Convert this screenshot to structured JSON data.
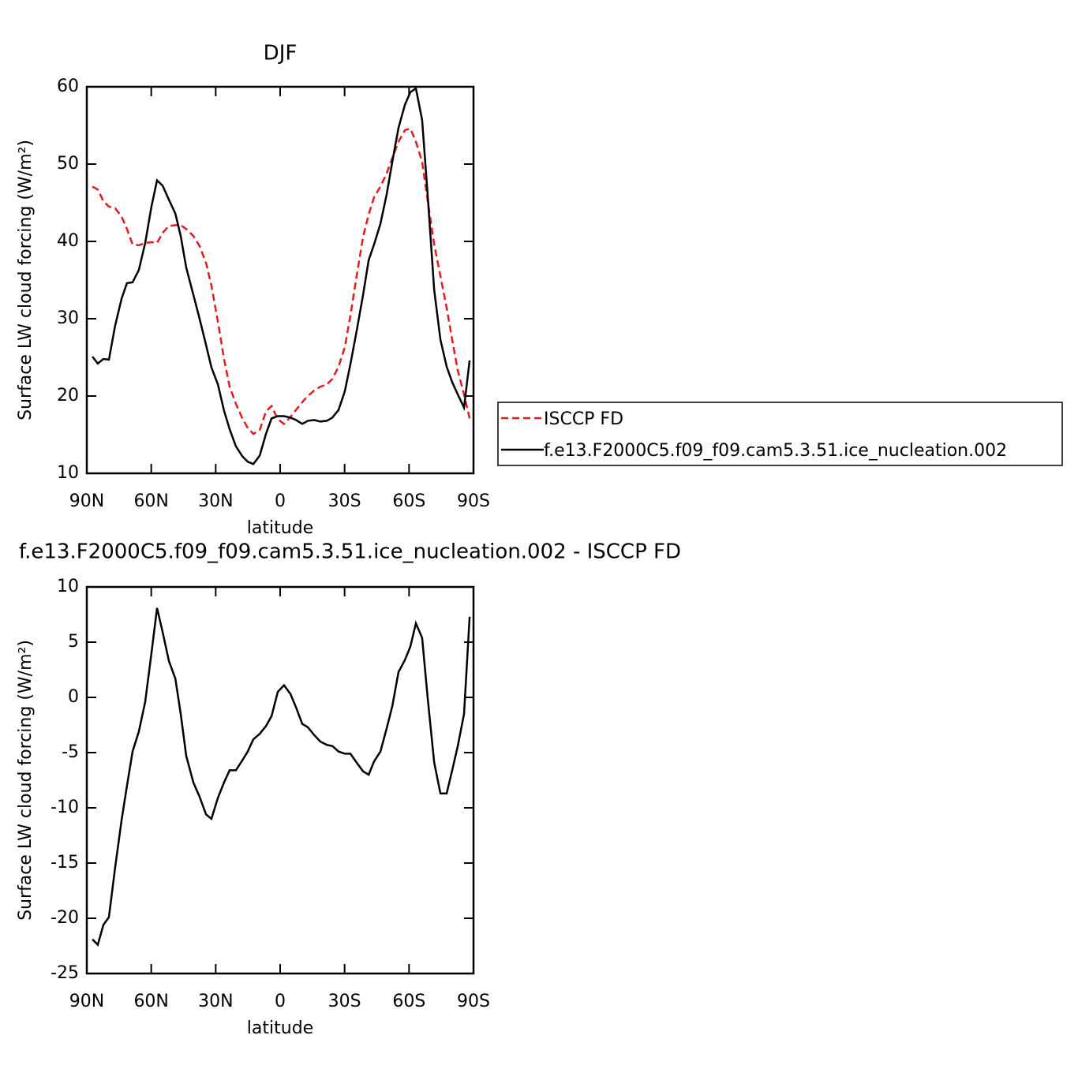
{
  "chart_data": [
    {
      "type": "line",
      "title": "DJF",
      "y_label": "Surface LW cloud forcing (W/m²)",
      "x_label": "latitude",
      "xlim": [
        90,
        -90
      ],
      "ylim": [
        10,
        60
      ],
      "xticks": [
        {
          "value": 90,
          "label": "90N"
        },
        {
          "value": 60,
          "label": "60N"
        },
        {
          "value": 30,
          "label": "30N"
        },
        0,
        {
          "value": -30,
          "label": "30S"
        },
        {
          "value": -60,
          "label": "60S"
        },
        {
          "value": -90,
          "label": "90S"
        }
      ],
      "yticks": [
        10,
        20,
        30,
        40,
        50,
        60
      ],
      "legend": "right",
      "x": [
        87.4,
        84.9,
        82.3,
        79.7,
        76.8,
        73.8,
        71.3,
        68.7,
        65.8,
        62.8,
        59.9,
        57.3,
        54.7,
        51.8,
        48.8,
        46.3,
        43.7,
        40.4,
        37.5,
        34.5,
        32.0,
        29.0,
        26.1,
        23.5,
        20.6,
        17.6,
        15.1,
        12.5,
        9.5,
        6.6,
        4.0,
        1.1,
        -1.8,
        -4.8,
        -7.4,
        -10.3,
        -12.9,
        -15.8,
        -18.7,
        -21.7,
        -24.3,
        -27.2,
        -30.1,
        -32.7,
        -35.6,
        -38.6,
        -41.2,
        -43.7,
        -46.7,
        -49.6,
        -52.2,
        -55.1,
        -58.1,
        -60.6,
        -63.2,
        -66.1,
        -68.7,
        -71.7,
        -74.6,
        -77.5,
        -80.1,
        -82.7,
        -85.6,
        -88.2
      ],
      "series": [
        {
          "name": "ISCCP FD",
          "color": "#e41a1c",
          "dash": true,
          "values": [
            47.1,
            46.7,
            45.2,
            44.5,
            44.3,
            43.2,
            41.6,
            39.6,
            39.5,
            39.8,
            39.9,
            39.8,
            41.1,
            42.0,
            42.1,
            42.1,
            41.6,
            40.7,
            39.4,
            37.2,
            34.3,
            29.6,
            24.8,
            21.2,
            19.0,
            17.1,
            15.9,
            15.1,
            15.6,
            18.0,
            18.7,
            17.0,
            16.4,
            17.3,
            18.2,
            19.2,
            20.0,
            20.7,
            21.2,
            21.5,
            22.2,
            23.8,
            26.3,
            30.4,
            35.5,
            40.6,
            43.5,
            45.7,
            47.1,
            48.8,
            50.8,
            52.9,
            54.4,
            54.6,
            52.9,
            50.3,
            45.2,
            39.6,
            35.5,
            31.4,
            27.3,
            23.3,
            20.2,
            17.1
          ]
        },
        {
          "name": "f.e13.F2000C5.f09_f09.cam5.3.51.ice_nucleation.002",
          "color": "#000000",
          "dash": false,
          "values": [
            25.1,
            24.2,
            24.8,
            24.7,
            29.1,
            32.6,
            34.6,
            34.7,
            36.3,
            39.8,
            44.5,
            47.9,
            47.2,
            45.4,
            43.6,
            40.7,
            36.6,
            33.1,
            30.0,
            26.6,
            23.7,
            21.5,
            18.1,
            15.7,
            13.5,
            12.2,
            11.5,
            11.2,
            12.3,
            15.1,
            17.1,
            17.4,
            17.4,
            17.2,
            16.9,
            16.4,
            16.8,
            16.9,
            16.7,
            16.8,
            17.2,
            18.2,
            20.6,
            24.1,
            28.4,
            33.1,
            37.6,
            39.6,
            42.3,
            46.1,
            50.3,
            54.7,
            57.7,
            59.3,
            59.8,
            55.7,
            45.9,
            33.7,
            27.3,
            23.8,
            21.8,
            20.2,
            18.5,
            24.6
          ]
        }
      ]
    },
    {
      "type": "line",
      "title": "f.e13.F2000C5.f09_f09.cam5.3.51.ice_nucleation.002 - ISCCP FD",
      "y_label": "Surface LW cloud forcing (W/m²)",
      "x_label": "latitude",
      "xlim": [
        90,
        -90
      ],
      "ylim": [
        -25,
        10
      ],
      "xticks": [
        {
          "value": 90,
          "label": "90N"
        },
        {
          "value": 60,
          "label": "60N"
        },
        {
          "value": 30,
          "label": "30N"
        },
        0,
        {
          "value": -30,
          "label": "30S"
        },
        {
          "value": -60,
          "label": "60S"
        },
        {
          "value": -90,
          "label": "90S"
        }
      ],
      "yticks": [
        -25,
        -20,
        -15,
        -10,
        -5,
        0,
        5,
        10
      ],
      "x": [
        87.4,
        84.9,
        82.3,
        79.7,
        76.8,
        73.8,
        71.3,
        68.7,
        65.8,
        62.8,
        59.9,
        57.3,
        54.7,
        51.8,
        48.8,
        46.3,
        43.7,
        40.4,
        37.5,
        34.5,
        32.0,
        29.0,
        26.1,
        23.5,
        20.6,
        17.6,
        15.1,
        12.5,
        9.5,
        6.6,
        4.0,
        1.1,
        -1.8,
        -4.8,
        -7.4,
        -10.3,
        -12.9,
        -15.8,
        -18.7,
        -21.7,
        -24.3,
        -27.2,
        -30.1,
        -32.7,
        -35.6,
        -38.6,
        -41.2,
        -43.7,
        -46.7,
        -49.6,
        -52.2,
        -55.1,
        -58.1,
        -60.6,
        -63.2,
        -66.1,
        -68.7,
        -71.7,
        -74.6,
        -77.5,
        -80.1,
        -82.7,
        -85.6,
        -88.2
      ],
      "series": [
        {
          "color": "#000000",
          "dash": false,
          "values": [
            -21.9,
            -22.4,
            -20.6,
            -19.9,
            -15.4,
            -11.1,
            -8.0,
            -4.9,
            -3.1,
            -0.4,
            4.0,
            8.1,
            5.9,
            3.3,
            1.7,
            -1.5,
            -5.3,
            -7.7,
            -9.0,
            -10.6,
            -11.0,
            -9.1,
            -7.7,
            -6.6,
            -6.6,
            -5.7,
            -4.9,
            -3.8,
            -3.3,
            -2.6,
            -1.7,
            0.5,
            1.1,
            0.3,
            -0.9,
            -2.4,
            -2.7,
            -3.4,
            -4.0,
            -4.3,
            -4.4,
            -4.9,
            -5.1,
            -5.1,
            -5.9,
            -6.7,
            -7.0,
            -5.8,
            -4.9,
            -2.8,
            -0.8,
            2.3,
            3.4,
            4.6,
            6.7,
            5.4,
            -0.1,
            -5.9,
            -8.7,
            -8.7,
            -6.6,
            -4.4,
            -1.5,
            7.3
          ]
        }
      ]
    }
  ]
}
